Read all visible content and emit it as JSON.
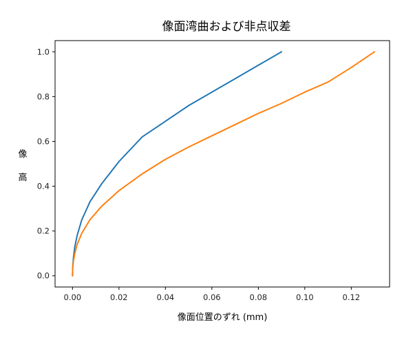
{
  "chart_data": {
    "type": "line",
    "title": "像面湾曲および非点収差",
    "xlabel": "像面位置のずれ (mm)",
    "ylabel_chars": [
      "像",
      "高"
    ],
    "xlim": [
      -0.0075,
      0.1365
    ],
    "ylim": [
      -0.05,
      1.05
    ],
    "xticks": [
      "0.00",
      "0.02",
      "0.04",
      "0.06",
      "0.08",
      "0.10",
      "0.12"
    ],
    "yticks": [
      "0.0",
      "0.2",
      "0.4",
      "0.6",
      "0.8",
      "1.0"
    ],
    "grid": false,
    "legend": "none",
    "series": [
      {
        "color": "#1f77b4",
        "x": [
          0.0,
          0.0001,
          0.0004,
          0.001,
          0.002,
          0.004,
          0.0075,
          0.0125,
          0.02,
          0.03,
          0.04,
          0.05,
          0.06,
          0.07,
          0.08,
          0.09
        ],
        "y": [
          0.0,
          0.04,
          0.08,
          0.13,
          0.18,
          0.25,
          0.33,
          0.41,
          0.51,
          0.62,
          0.69,
          0.76,
          0.82,
          0.88,
          0.94,
          1.0
        ]
      },
      {
        "color": "#ff7f0e",
        "x": [
          0.0,
          0.0001,
          0.0004,
          0.001,
          0.002,
          0.004,
          0.0075,
          0.0125,
          0.02,
          0.03,
          0.04,
          0.05,
          0.06,
          0.07,
          0.08,
          0.09,
          0.1,
          0.11,
          0.12,
          0.13
        ],
        "y": [
          0.0,
          0.035,
          0.065,
          0.1,
          0.14,
          0.19,
          0.25,
          0.31,
          0.38,
          0.455,
          0.52,
          0.575,
          0.625,
          0.675,
          0.725,
          0.77,
          0.82,
          0.865,
          0.93,
          1.0
        ]
      }
    ]
  }
}
